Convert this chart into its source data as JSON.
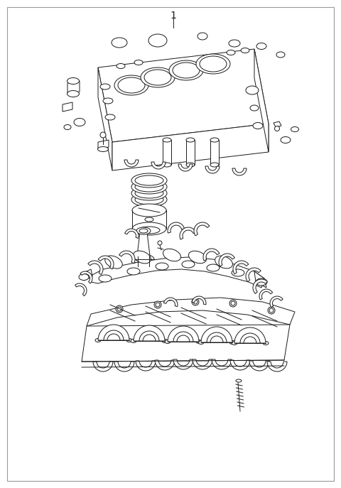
{
  "title_label": "1",
  "bg_color": "#ffffff",
  "border_color": "#888888",
  "line_color": "#1a1a1a",
  "lw": 0.7,
  "figsize": [
    4.8,
    6.87
  ],
  "dpi": 100
}
